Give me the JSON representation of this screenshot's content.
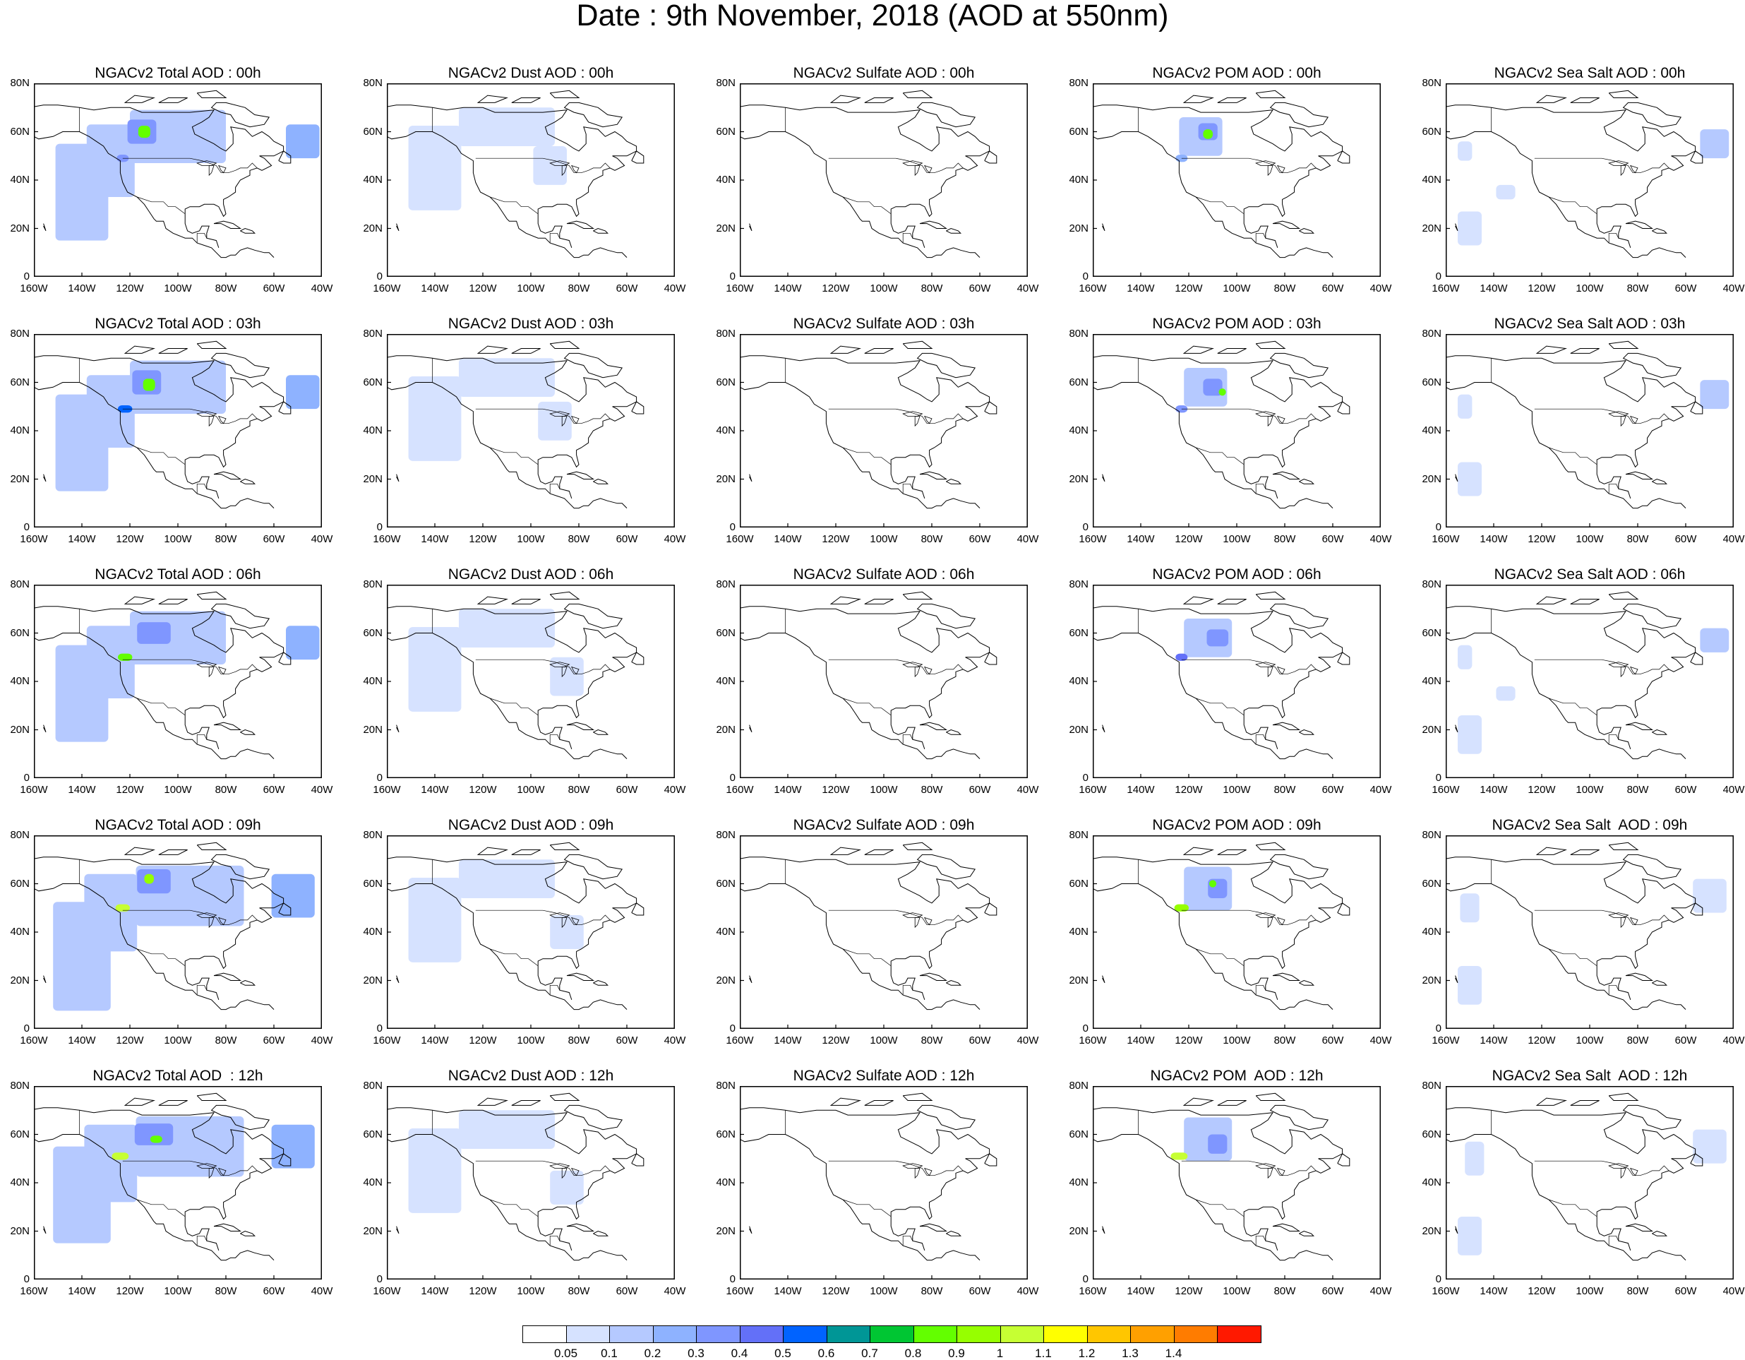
{
  "title": "Date : 9th November, 2018 (AOD at 550nm)",
  "lat_ticks": [
    "80N",
    "60N",
    "40N",
    "20N",
    "0"
  ],
  "lon_ticks": [
    "160W",
    "140W",
    "120W",
    "100W",
    "80W",
    "60W",
    "40W"
  ],
  "map_extent": {
    "lon": [
      -160,
      -40
    ],
    "lat": [
      0,
      80
    ]
  },
  "species": [
    {
      "key": "total",
      "name": "Total"
    },
    {
      "key": "dust",
      "name": "Dust"
    },
    {
      "key": "sulfate",
      "name": "Sulfate"
    },
    {
      "key": "pom",
      "name": "POM"
    },
    {
      "key": "seasalt",
      "name": "Sea Salt"
    }
  ],
  "times": [
    "00h",
    "03h",
    "06h",
    "09h",
    "12h"
  ],
  "panel_titles": [
    [
      "NGACv2 Total AOD : 00h",
      "NGACv2 Dust AOD : 00h",
      "NGACv2 Sulfate AOD : 00h",
      "NGACv2 POM AOD : 00h",
      "NGACv2 Sea Salt AOD : 00h"
    ],
    [
      "NGACv2 Total AOD : 03h",
      "NGACv2 Dust AOD : 03h",
      "NGACv2 Sulfate AOD : 03h",
      "NGACv2 POM AOD : 03h",
      "NGACv2 Sea Salt AOD : 03h"
    ],
    [
      "NGACv2 Total AOD : 06h",
      "NGACv2 Dust AOD : 06h",
      "NGACv2 Sulfate AOD : 06h",
      "NGACv2 POM AOD : 06h",
      "NGACv2 Sea Salt AOD : 06h"
    ],
    [
      "NGACv2 Total AOD : 09h",
      "NGACv2 Dust AOD : 09h",
      "NGACv2 Sulfate AOD : 09h",
      "NGACv2 POM AOD : 09h",
      "NGACv2 Sea Salt  AOD : 09h"
    ],
    [
      "NGACv2 Total AOD  : 12h",
      "NGACv2 Dust AOD : 12h",
      "NGACv2 Sulfate AOD : 12h",
      "NGACv2 POM  AOD : 12h",
      "NGACv2 Sea Salt  AOD : 12h"
    ]
  ],
  "colorbar": {
    "colors": [
      "#ffffff",
      "#d6e2ff",
      "#b5c9ff",
      "#8eb2ff",
      "#7f96ff",
      "#6370f8",
      "#0063ff",
      "#009696",
      "#00c633",
      "#63ff00",
      "#96ff00",
      "#c6ff33",
      "#ffff00",
      "#ffc600",
      "#ffa000",
      "#ff7c00",
      "#ff1900"
    ],
    "labels": [
      "0.05",
      "0.1",
      "0.2",
      "0.3",
      "0.4",
      "0.5",
      "0.6",
      "0.7",
      "0.8",
      "0.9",
      "1",
      "1.1",
      "1.2",
      "1.3",
      "1.4"
    ]
  },
  "chart_data": {
    "type": "heatmap",
    "title": "Date : 9th November, 2018 (AOD at 550nm)",
    "xlabel": "",
    "ylabel": "",
    "xlim": [
      -160,
      -40
    ],
    "ylim": [
      0,
      80
    ],
    "rows": [
      "00h",
      "03h",
      "06h",
      "09h",
      "12h"
    ],
    "columns": [
      "Total",
      "Dust",
      "Sulfate",
      "POM",
      "Sea Salt"
    ],
    "levels": [
      0.05,
      0.1,
      0.2,
      0.3,
      0.4,
      0.5,
      0.6,
      0.7,
      0.8,
      0.9,
      1,
      1.1,
      1.2,
      1.3,
      1.4
    ],
    "plumes": {
      "total": [
        [
          {
            "lon": -128,
            "lat": 48,
            "w": 20,
            "h": 30,
            "level": 0.1
          },
          {
            "lon": -140,
            "lat": 35,
            "w": 22,
            "h": 40,
            "level": 0.1
          },
          {
            "lon": -100,
            "lat": 58,
            "w": 40,
            "h": 22,
            "level": 0.1
          },
          {
            "lon": -48,
            "lat": 56,
            "w": 14,
            "h": 14,
            "level": 0.2
          },
          {
            "lon": -115,
            "lat": 60,
            "w": 12,
            "h": 10,
            "level": 0.3
          },
          {
            "lon": -114,
            "lat": 60,
            "w": 5,
            "h": 5,
            "level": 0.8
          },
          {
            "lon": -123,
            "lat": 49,
            "w": 5,
            "h": 3,
            "level": 0.3
          }
        ],
        [
          {
            "lon": -128,
            "lat": 48,
            "w": 20,
            "h": 30,
            "level": 0.1
          },
          {
            "lon": -140,
            "lat": 35,
            "w": 22,
            "h": 40,
            "level": 0.1
          },
          {
            "lon": -100,
            "lat": 58,
            "w": 40,
            "h": 22,
            "level": 0.1
          },
          {
            "lon": -48,
            "lat": 56,
            "w": 14,
            "h": 14,
            "level": 0.2
          },
          {
            "lon": -113,
            "lat": 60,
            "w": 12,
            "h": 10,
            "level": 0.3
          },
          {
            "lon": -112,
            "lat": 59,
            "w": 5,
            "h": 5,
            "level": 0.8
          },
          {
            "lon": -122,
            "lat": 49,
            "w": 6,
            "h": 3,
            "level": 0.5
          }
        ],
        [
          {
            "lon": -128,
            "lat": 48,
            "w": 20,
            "h": 30,
            "level": 0.1
          },
          {
            "lon": -140,
            "lat": 35,
            "w": 22,
            "h": 40,
            "level": 0.1
          },
          {
            "lon": -100,
            "lat": 58,
            "w": 40,
            "h": 22,
            "level": 0.1
          },
          {
            "lon": -48,
            "lat": 56,
            "w": 14,
            "h": 14,
            "level": 0.2
          },
          {
            "lon": -110,
            "lat": 60,
            "w": 14,
            "h": 9,
            "level": 0.3
          },
          {
            "lon": -122,
            "lat": 50,
            "w": 6,
            "h": 3,
            "level": 0.8
          }
        ],
        [
          {
            "lon": -128,
            "lat": 48,
            "w": 22,
            "h": 32,
            "level": 0.1
          },
          {
            "lon": -140,
            "lat": 30,
            "w": 24,
            "h": 45,
            "level": 0.1
          },
          {
            "lon": -95,
            "lat": 55,
            "w": 45,
            "h": 25,
            "level": 0.1
          },
          {
            "lon": -52,
            "lat": 55,
            "w": 18,
            "h": 18,
            "level": 0.2
          },
          {
            "lon": -110,
            "lat": 61,
            "w": 14,
            "h": 10,
            "level": 0.3
          },
          {
            "lon": -112,
            "lat": 62,
            "w": 4,
            "h": 4,
            "level": 0.9
          },
          {
            "lon": -123,
            "lat": 50,
            "w": 6,
            "h": 3,
            "level": 1.0
          }
        ],
        [
          {
            "lon": -128,
            "lat": 48,
            "w": 22,
            "h": 32,
            "level": 0.1
          },
          {
            "lon": -140,
            "lat": 35,
            "w": 24,
            "h": 40,
            "level": 0.1
          },
          {
            "lon": -95,
            "lat": 55,
            "w": 45,
            "h": 25,
            "level": 0.1
          },
          {
            "lon": -52,
            "lat": 55,
            "w": 18,
            "h": 18,
            "level": 0.2
          },
          {
            "lon": -110,
            "lat": 60,
            "w": 16,
            "h": 9,
            "level": 0.3
          },
          {
            "lon": -109,
            "lat": 58,
            "w": 5,
            "h": 3,
            "level": 0.8
          },
          {
            "lon": -124,
            "lat": 51,
            "w": 7,
            "h": 3,
            "level": 1.0
          }
        ]
      ],
      "dust": [
        [
          {
            "lon": -140,
            "lat": 45,
            "w": 22,
            "h": 35,
            "level": 0.05
          },
          {
            "lon": -110,
            "lat": 62,
            "w": 40,
            "h": 16,
            "level": 0.05
          },
          {
            "lon": -92,
            "lat": 46,
            "w": 14,
            "h": 16,
            "level": 0.05
          }
        ],
        [
          {
            "lon": -140,
            "lat": 45,
            "w": 22,
            "h": 35,
            "level": 0.05
          },
          {
            "lon": -110,
            "lat": 62,
            "w": 40,
            "h": 16,
            "level": 0.05
          },
          {
            "lon": -90,
            "lat": 44,
            "w": 14,
            "h": 16,
            "level": 0.05
          }
        ],
        [
          {
            "lon": -140,
            "lat": 45,
            "w": 22,
            "h": 35,
            "level": 0.05
          },
          {
            "lon": -110,
            "lat": 62,
            "w": 40,
            "h": 16,
            "level": 0.05
          },
          {
            "lon": -85,
            "lat": 42,
            "w": 14,
            "h": 16,
            "level": 0.05
          }
        ],
        [
          {
            "lon": -140,
            "lat": 45,
            "w": 22,
            "h": 35,
            "level": 0.05
          },
          {
            "lon": -110,
            "lat": 62,
            "w": 40,
            "h": 16,
            "level": 0.05
          },
          {
            "lon": -85,
            "lat": 40,
            "w": 14,
            "h": 14,
            "level": 0.05
          }
        ],
        [
          {
            "lon": -140,
            "lat": 45,
            "w": 22,
            "h": 35,
            "level": 0.05
          },
          {
            "lon": -110,
            "lat": 62,
            "w": 40,
            "h": 16,
            "level": 0.05
          },
          {
            "lon": -85,
            "lat": 38,
            "w": 14,
            "h": 14,
            "level": 0.05
          }
        ]
      ],
      "sulfate": [
        [],
        [],
        [],
        [],
        []
      ],
      "pom": [
        [
          {
            "lon": -115,
            "lat": 58,
            "w": 18,
            "h": 16,
            "level": 0.1
          },
          {
            "lon": -112,
            "lat": 60,
            "w": 8,
            "h": 7,
            "level": 0.3
          },
          {
            "lon": -112,
            "lat": 59,
            "w": 4,
            "h": 4,
            "level": 0.8
          },
          {
            "lon": -123,
            "lat": 49,
            "w": 5,
            "h": 3,
            "level": 0.2
          }
        ],
        [
          {
            "lon": -113,
            "lat": 58,
            "w": 18,
            "h": 16,
            "level": 0.1
          },
          {
            "lon": -110,
            "lat": 58,
            "w": 8,
            "h": 7,
            "level": 0.3
          },
          {
            "lon": -106,
            "lat": 56,
            "w": 3,
            "h": 3,
            "level": 0.8
          },
          {
            "lon": -123,
            "lat": 49,
            "w": 5,
            "h": 3,
            "level": 0.3
          }
        ],
        [
          {
            "lon": -112,
            "lat": 58,
            "w": 20,
            "h": 16,
            "level": 0.1
          },
          {
            "lon": -108,
            "lat": 58,
            "w": 9,
            "h": 7,
            "level": 0.3
          },
          {
            "lon": -123,
            "lat": 50,
            "w": 5,
            "h": 3,
            "level": 0.4
          }
        ],
        [
          {
            "lon": -112,
            "lat": 58,
            "w": 20,
            "h": 18,
            "level": 0.1
          },
          {
            "lon": -108,
            "lat": 58,
            "w": 8,
            "h": 8,
            "level": 0.3
          },
          {
            "lon": -110,
            "lat": 60,
            "w": 3,
            "h": 3,
            "level": 0.8
          },
          {
            "lon": -123,
            "lat": 50,
            "w": 6,
            "h": 3,
            "level": 0.9
          }
        ],
        [
          {
            "lon": -112,
            "lat": 58,
            "w": 20,
            "h": 18,
            "level": 0.1
          },
          {
            "lon": -108,
            "lat": 56,
            "w": 8,
            "h": 8,
            "level": 0.3
          },
          {
            "lon": -124,
            "lat": 51,
            "w": 7,
            "h": 3,
            "level": 1.0
          }
        ]
      ],
      "seasalt": [
        [
          {
            "lon": -48,
            "lat": 55,
            "w": 12,
            "h": 12,
            "level": 0.1
          },
          {
            "lon": -150,
            "lat": 20,
            "w": 10,
            "h": 14,
            "level": 0.05
          },
          {
            "lon": -135,
            "lat": 35,
            "w": 8,
            "h": 6,
            "level": 0.05
          },
          {
            "lon": -152,
            "lat": 52,
            "w": 6,
            "h": 8,
            "level": 0.05
          }
        ],
        [
          {
            "lon": -48,
            "lat": 55,
            "w": 12,
            "h": 12,
            "level": 0.1
          },
          {
            "lon": -150,
            "lat": 20,
            "w": 10,
            "h": 14,
            "level": 0.05
          },
          {
            "lon": -152,
            "lat": 50,
            "w": 6,
            "h": 10,
            "level": 0.05
          }
        ],
        [
          {
            "lon": -48,
            "lat": 57,
            "w": 12,
            "h": 10,
            "level": 0.1
          },
          {
            "lon": -150,
            "lat": 18,
            "w": 10,
            "h": 16,
            "level": 0.05
          },
          {
            "lon": -152,
            "lat": 50,
            "w": 6,
            "h": 10,
            "level": 0.05
          },
          {
            "lon": -135,
            "lat": 35,
            "w": 8,
            "h": 6,
            "level": 0.05
          }
        ],
        [
          {
            "lon": -50,
            "lat": 55,
            "w": 14,
            "h": 14,
            "level": 0.05
          },
          {
            "lon": -150,
            "lat": 18,
            "w": 10,
            "h": 16,
            "level": 0.05
          },
          {
            "lon": -150,
            "lat": 50,
            "w": 8,
            "h": 12,
            "level": 0.05
          }
        ],
        [
          {
            "lon": -50,
            "lat": 55,
            "w": 14,
            "h": 14,
            "level": 0.05
          },
          {
            "lon": -150,
            "lat": 18,
            "w": 10,
            "h": 16,
            "level": 0.05
          },
          {
            "lon": -148,
            "lat": 50,
            "w": 8,
            "h": 14,
            "level": 0.05
          }
        ]
      ]
    }
  }
}
